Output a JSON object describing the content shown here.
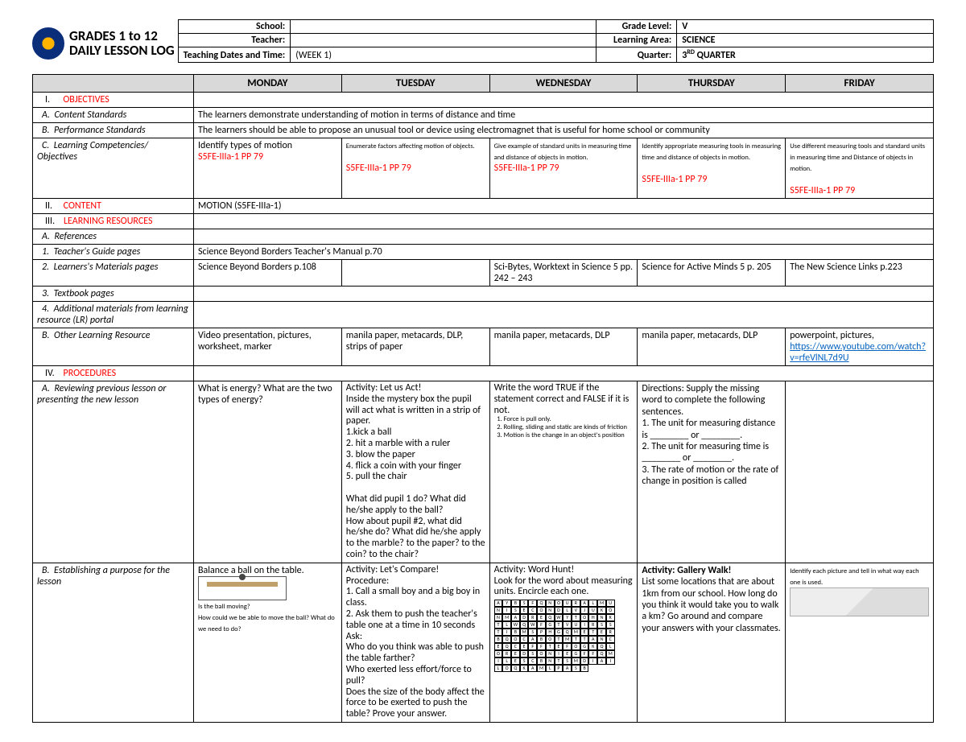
{
  "title_line1": "GRADES 1 to 12",
  "title_line2": "DAILY LESSON LOG",
  "meta": {
    "school_lbl": "School:",
    "school_val": "",
    "teacher_lbl": "Teacher:",
    "teacher_val": "",
    "dates_lbl": "Teaching Dates and Time:",
    "dates_val": "(WEEK 1)",
    "grade_lbl": "Grade Level:",
    "grade_val": "V",
    "area_lbl": "Learning Area:",
    "area_val": "SCIENCE",
    "quarter_lbl": "Quarter:",
    "quarter_val_pre": "3",
    "quarter_val_sup": "RD",
    "quarter_val_post": " QUARTER"
  },
  "days": [
    "MONDAY",
    "TUESDAY",
    "WEDNESDAY",
    "THURSDAY",
    "FRIDAY"
  ],
  "sections": {
    "I": "OBJECTIVES",
    "IA": "Content Standards",
    "IB": "Performance Standards",
    "IC": "Learning Competencies/ Objectives",
    "II": "CONTENT",
    "III": "LEARNING RESOURCES",
    "IIIA": "References",
    "III1": "Teacher's Guide pages",
    "III2": "Learners's Materials pages",
    "III3": "Textbook pages",
    "III4": "Additional materials from learning resource (LR) portal",
    "IIIB": "Other Learning Resource",
    "IV": "PROCEDURES",
    "IVA": "Reviewing previous lesson or presenting the new lesson",
    "IVB": "Establishing a purpose for the lesson"
  },
  "content_standards": "The learners demonstrate understanding of motion in terms of distance and time",
  "performance_standards": "The learners should be able to propose an unusual tool or device using electromagnet that is useful for home school or community",
  "learning_comp": {
    "mon": "Identify types of motion",
    "tue": "Enumerate factors affecting motion of objects.",
    "wed": "Give example of standard units in measuring time and distance of objects in motion.",
    "thu": "Identify appropriate measuring tools in measuring time and distance of objects in motion.",
    "fri": "Use different measuring tools and standard units in measuring time and Distance of objects in motion.",
    "code": "S5FE-IIIa-1  PP 79"
  },
  "content_row": "MOTION (S5FE-IIIa-1)",
  "teachers_guide": "Science Beyond Borders Teacher's Manual p.70",
  "learners_materials": {
    "mon": "Science Beyond Borders p.108",
    "wed": "Sci-Bytes, Worktext in Science 5 pp. 242 – 243",
    "thu": "Science for Active Minds 5 p. 205",
    "fri": "The New Science Links p.223"
  },
  "other_learning": {
    "mon": "Video presentation, pictures, worksheet, marker",
    "tue": "manila paper, metacards, DLP, strips of paper",
    "wed": "manila paper, metacards, DLP",
    "thu": "manila paper, metacards, DLP",
    "fri_txt": "powerpoint, pictures, ",
    "fri_url": "https://www.youtube.com/watch?v=rfeVlNL7d9U"
  },
  "proc_A": {
    "mon": "What is energy? What are the two types of energy?",
    "tue_title": "Activity: Let us Act!",
    "tue_body": "Inside the mystery box the pupil will act what is written in a strip of paper.\n1.kick a ball\n2. hit a marble with a ruler\n3. blow the paper\n4. flick a coin with your finger\n5. pull the chair\n\nWhat did pupil 1 do?  What did he/she apply to the ball?\nHow about pupil #2, what did he/she do? What did he/she apply to the marble? to the paper? to the coin? to the chair?",
    "wed_title": "Write the word TRUE if the statement correct and FALSE if it is not.",
    "wed_items": [
      "Force is pull only.",
      "Rolling, sliding and static are kinds of friction",
      "Motion is the change in an object's position"
    ],
    "thu_title": "Directions: Supply the missing word to complete the following sentences.",
    "thu_body": "1. The unit for measuring distance is ________ or ________.\n2. The unit for measuring time is ________ or ________.\n3. The rate of motion or the rate of change in position is called"
  },
  "proc_B": {
    "mon_line1": "Balance a ball on the table.",
    "mon_q1": "Is the ball moving?",
    "mon_q2": "How could we be able to move the ball? What do we need to do?",
    "tue_title": "Activity: Let's Compare!",
    "tue_body": "Procedure:\n1. Call a small boy and a big boy in class.\n2. Ask them to push the teacher's table one at a time in 10 seconds\nAsk:\nWho do you think was able to push the table farther?\nWho exerted less effort/force to pull?\nDoes the size of the body affect the force to be exerted to push the table? Prove your answer.",
    "wed_title": "Activity: Word Hunt!",
    "wed_sub": "Look for the word about measuring units. Encircle each one.",
    "wed_grid": "AYBSFQNOURALMUNISECONDLVJUKONMADREQWYTOHNKTLWQWFGTVUIRSSTIBMSPHGQMETERBQOCABOTMTTANCEQCEFFTEFOGKQLOREDSONIEGFFQMILESCBNTSMDIAILOQKAMLPASB",
    "thu_title": "Activity: Gallery Walk!",
    "thu_body": "List some locations that are about 1km from our school. How long do you think it would take you to walk a km? Go around and compare your answers with your classmates.",
    "fri_title": "Identify each picture and tell in what way each one is used."
  }
}
